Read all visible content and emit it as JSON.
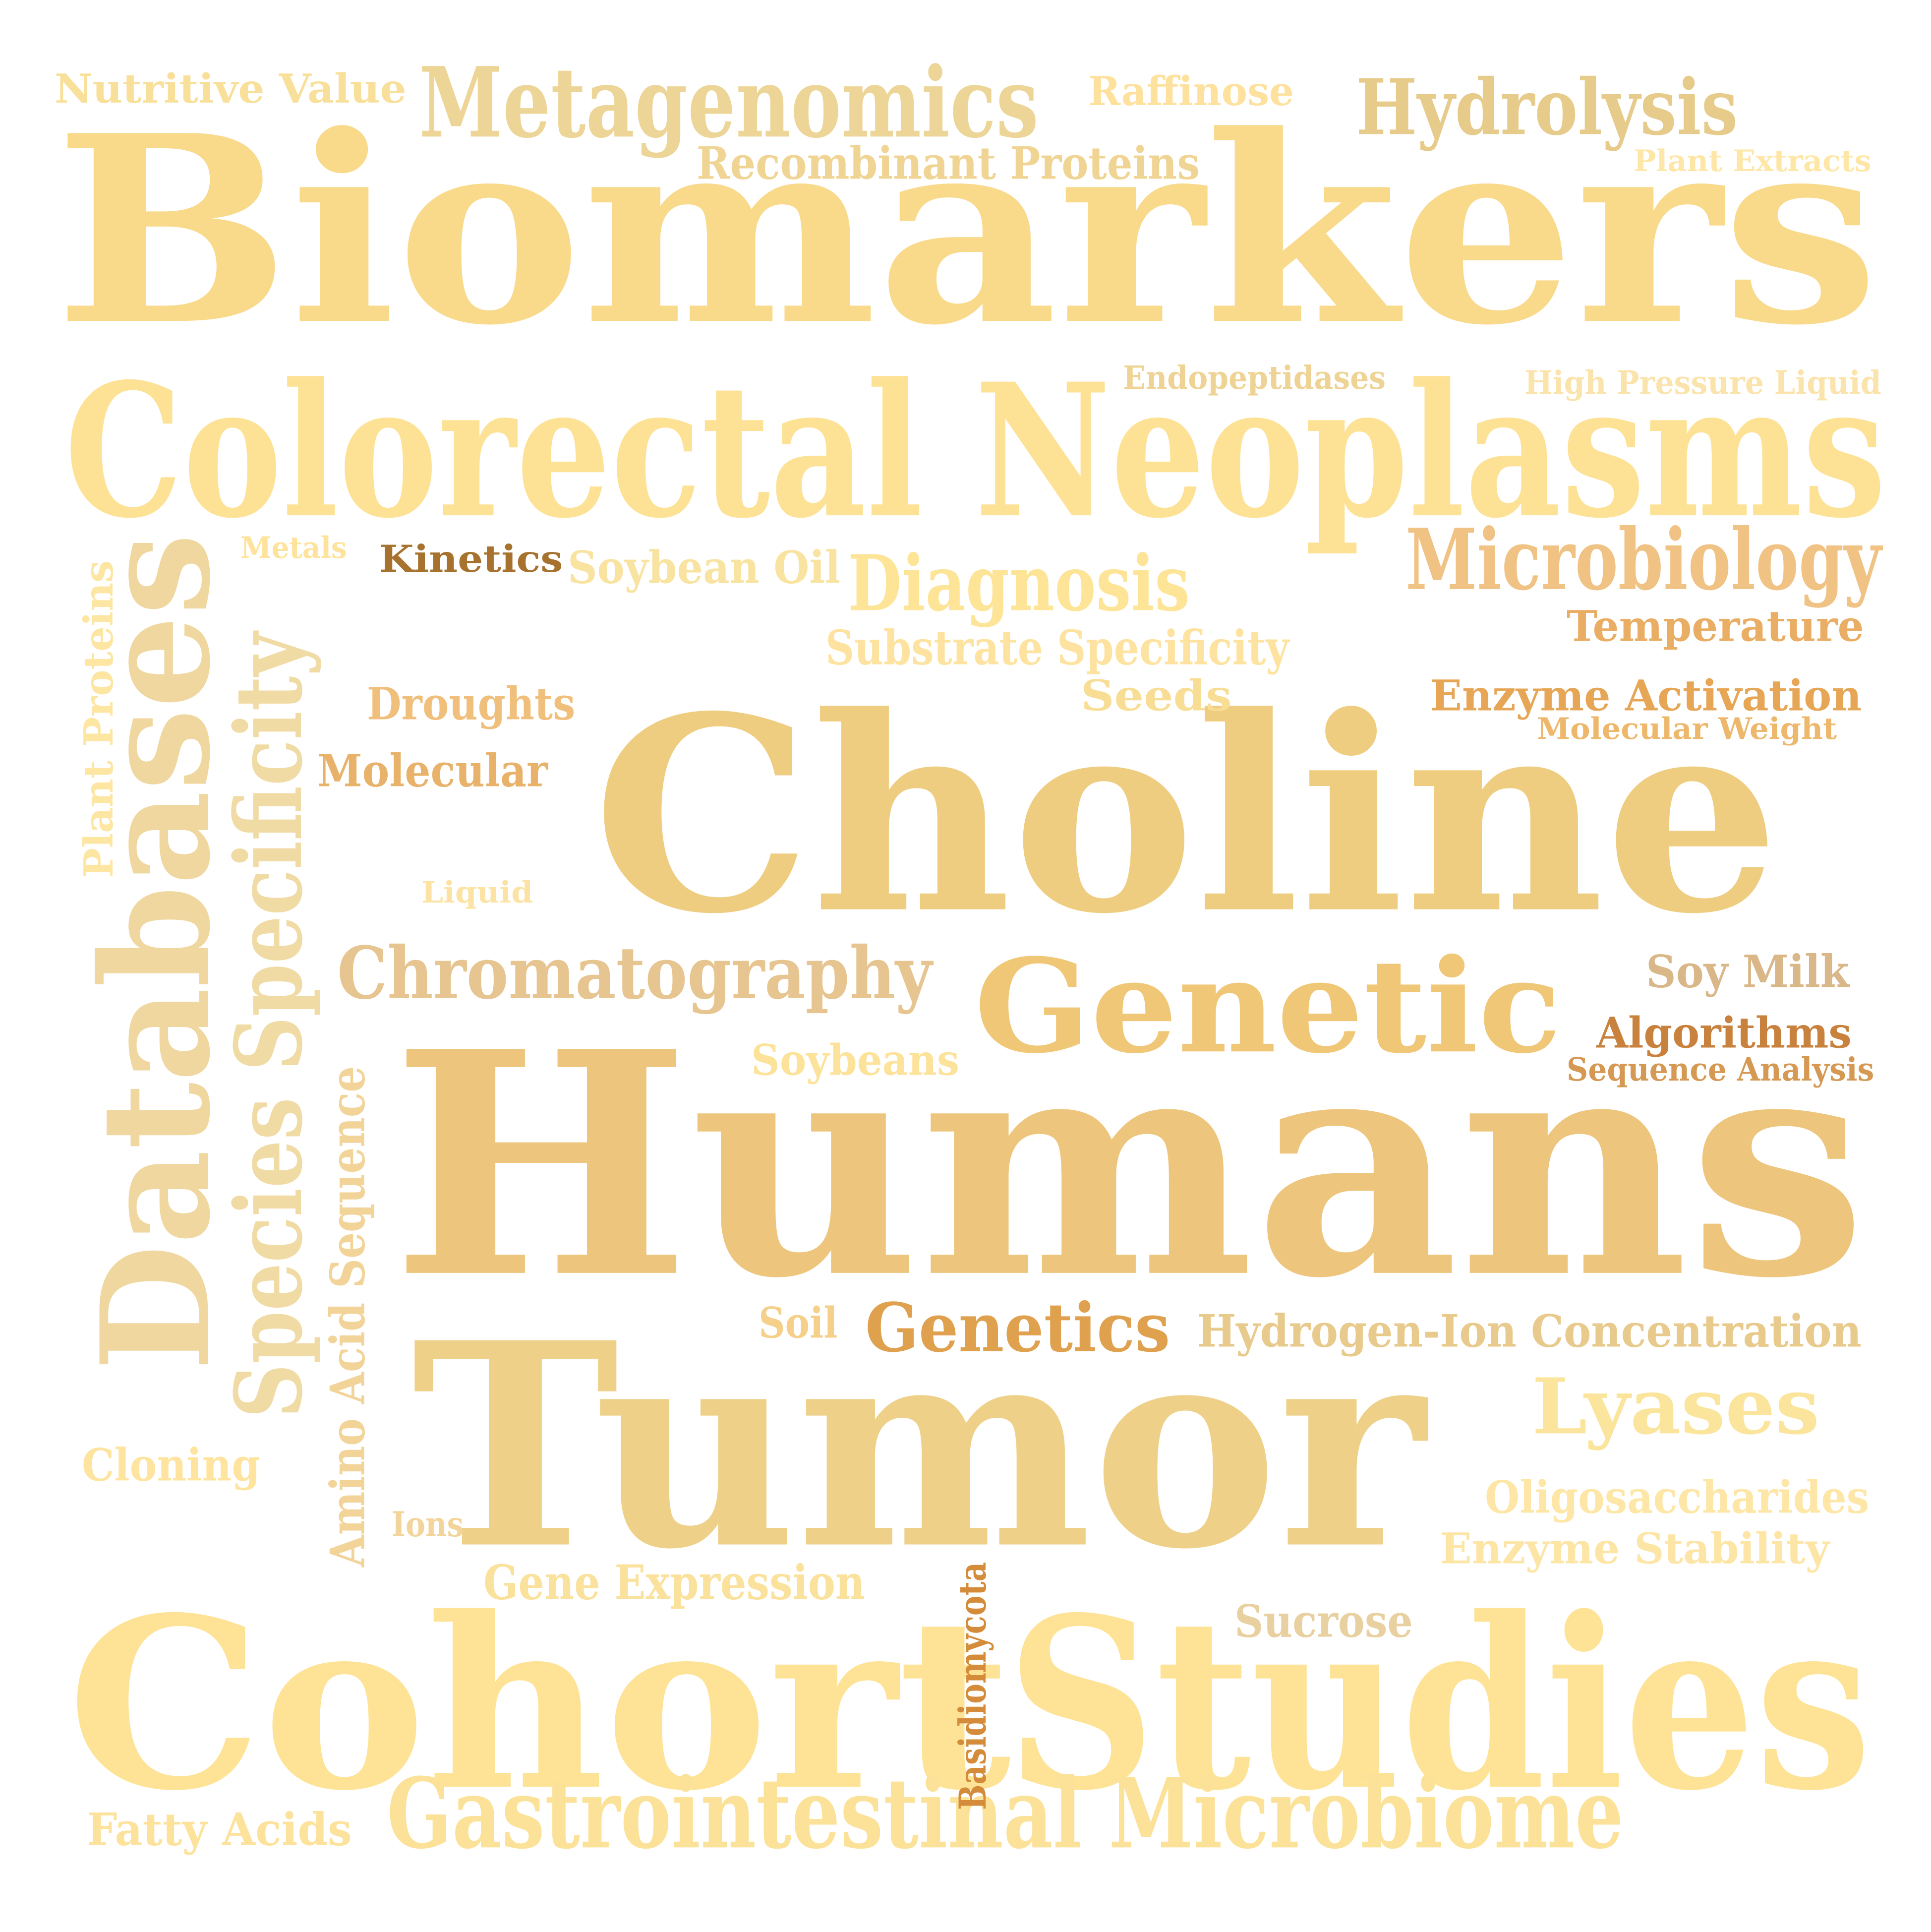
{
  "words": [
    {
      "text": "Biomarkers",
      "color": "#f9d98a"
    },
    {
      "text": "Colorectal Neoplasms",
      "color": "#fde296"
    },
    {
      "text": "Choline",
      "color": "#efcd80"
    },
    {
      "text": "Humans",
      "color": "#edc57c"
    },
    {
      "text": "Tumor",
      "color": "#eed088"
    },
    {
      "text": "Cohort",
      "color": "#fee396"
    },
    {
      "text": "Studies",
      "color": "#fee396"
    },
    {
      "text": "Genetic",
      "color": "#f0c776"
    },
    {
      "text": "Databases",
      "color": "#efd79f"
    },
    {
      "text": "Species Specificity",
      "color": "#f1dba5"
    },
    {
      "text": "Metagenomics",
      "color": "#edd597"
    },
    {
      "text": "Hydrolysis",
      "color": "#e6cb8a"
    },
    {
      "text": "Gastrointestinal Microbiome",
      "color": "#fbe298"
    },
    {
      "text": "Chromatography",
      "color": "#e7c591"
    },
    {
      "text": "Microbiology",
      "color": "#f0c284"
    },
    {
      "text": "Diagnosis",
      "color": "#fde496"
    },
    {
      "text": "Lyases",
      "color": "#fbe59d"
    },
    {
      "text": "Genetics",
      "color": "#dfa14d"
    },
    {
      "text": "Nutritive Value",
      "color": "#f9e09a"
    },
    {
      "text": "Raffinose",
      "color": "#fde19c"
    },
    {
      "text": "Recombinant Proteins",
      "color": "#f0d493"
    },
    {
      "text": "Plant Extracts",
      "color": "#fee7a6"
    },
    {
      "text": "Endopeptidases",
      "color": "#eed394"
    },
    {
      "text": "High Pressure Liquid",
      "color": "#fbe4ab"
    },
    {
      "text": "Metals",
      "color": "#fde39c"
    },
    {
      "text": "Kinetics",
      "color": "#a6722e"
    },
    {
      "text": "Soybean Oil",
      "color": "#f9e3a0"
    },
    {
      "text": "Plant Proteins",
      "color": "#fde5a2"
    },
    {
      "text": "Substrate Specificity",
      "color": "#fde39f"
    },
    {
      "text": "Temperature",
      "color": "#e9ad63"
    },
    {
      "text": "Droughts",
      "color": "#f0bf7b"
    },
    {
      "text": "Seeds",
      "color": "#f8dd95"
    },
    {
      "text": "Enzyme Activation",
      "color": "#e6a656"
    },
    {
      "text": "Molecular Weight",
      "color": "#eeb86c"
    },
    {
      "text": "Molecular",
      "color": "#e8b26a"
    },
    {
      "text": "Liquid",
      "color": "#fce3a3"
    },
    {
      "text": "Soy Milk",
      "color": "#d9b788"
    },
    {
      "text": "Algorithms",
      "color": "#c9823e"
    },
    {
      "text": "Sequence Analysis",
      "color": "#d59953"
    },
    {
      "text": "Soybeans",
      "color": "#fde29a"
    },
    {
      "text": "Amino Acid Sequence",
      "color": "#f2d398"
    },
    {
      "text": "Soil",
      "color": "#f4d08a"
    },
    {
      "text": "Hydrogen-Ion Concentration",
      "color": "#e8ca8d"
    },
    {
      "text": "Cloning",
      "color": "#fee49e"
    },
    {
      "text": "Oligosaccharides",
      "color": "#fde6a6"
    },
    {
      "text": "Ions",
      "color": "#f3d59b"
    },
    {
      "text": "Enzyme Stability",
      "color": "#fde5a6"
    },
    {
      "text": "Gene Expression",
      "color": "#fae19c"
    },
    {
      "text": "Basidiomycota",
      "color": "#d58c3a"
    },
    {
      "text": "Sucrose",
      "color": "#e8d0a0"
    },
    {
      "text": "Fatty Acids",
      "color": "#fde29c"
    }
  ]
}
